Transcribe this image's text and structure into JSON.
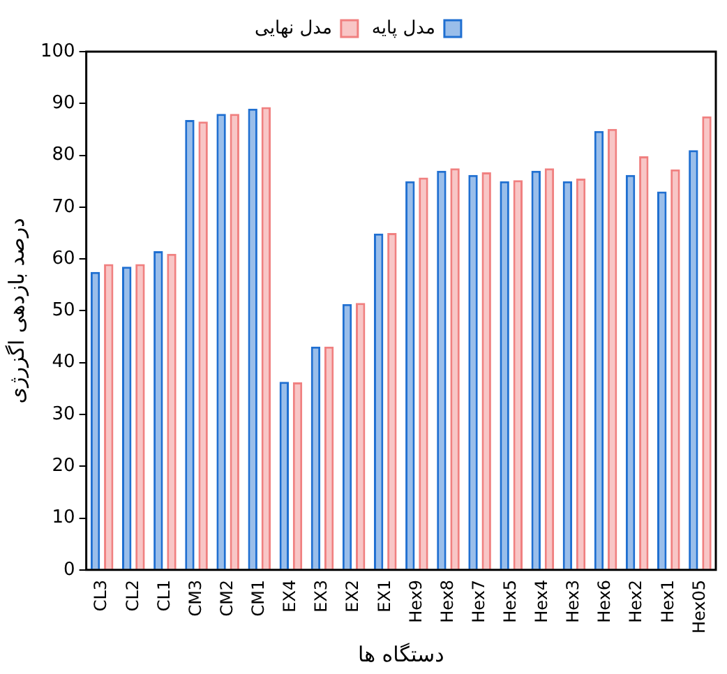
{
  "chart_data": {
    "type": "bar",
    "xlabel": "دستگاه ها",
    "ylabel": "درصد بازدهی اگزرژی",
    "categories": [
      "CL3",
      "CL2",
      "CL1",
      "CM3",
      "CM2",
      "CM1",
      "EX4",
      "EX3",
      "EX2",
      "EX1",
      "Hex9",
      "Hex8",
      "Hex7",
      "Hex5",
      "Hex4",
      "Hex3",
      "Hex6",
      "Hex2",
      "Hex1",
      "Hex05"
    ],
    "series": [
      {
        "name": "مدل پایه",
        "color": "#1f6fd1",
        "values": [
          57.5,
          58.5,
          61.5,
          86.8,
          88,
          89,
          36.3,
          43.1,
          51.3,
          64.9,
          75,
          77,
          76.2,
          75,
          77,
          75,
          84.7,
          76.2,
          73,
          81
        ]
      },
      {
        "name": "مدل نهایی",
        "color": "#f08080",
        "values": [
          59,
          59,
          61,
          86.5,
          88,
          89.3,
          36.2,
          43.1,
          51.5,
          65,
          75.7,
          77.5,
          76.7,
          75.2,
          77.5,
          75.5,
          85.1,
          79.8,
          77.3,
          87.5
        ]
      }
    ],
    "ylim": [
      0,
      100
    ],
    "yticks": [
      0,
      10,
      20,
      30,
      40,
      50,
      60,
      70,
      80,
      90,
      100
    ],
    "grid": false,
    "legend": "top"
  }
}
